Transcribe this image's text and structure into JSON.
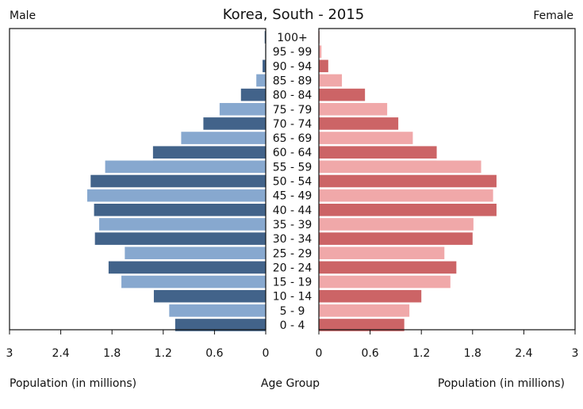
{
  "chart_data": {
    "type": "bar",
    "subtype": "population-pyramid",
    "title": "Korea, South - 2015",
    "left_label": "Male",
    "right_label": "Female",
    "xlabel_left": "Population (in millions)",
    "xlabel_center": "Age Group",
    "xlabel_right": "Population (in millions)",
    "xlim": [
      0,
      3
    ],
    "xticks": [
      "0",
      "0.6",
      "1.2",
      "1.8",
      "2.4",
      "3"
    ],
    "grid": false,
    "categories": [
      "0 - 4",
      "5 - 9",
      "10 - 14",
      "15 - 19",
      "20 - 24",
      "25 - 29",
      "30 - 34",
      "35 - 39",
      "40 - 44",
      "45 - 49",
      "50 - 54",
      "55 - 59",
      "60 - 64",
      "65 - 69",
      "70 - 74",
      "75 - 79",
      "80 - 84",
      "85 - 89",
      "90 - 94",
      "95 - 99",
      "100+"
    ],
    "series": [
      {
        "name": "Male",
        "values": [
          1.06,
          1.13,
          1.31,
          1.69,
          1.84,
          1.65,
          2.0,
          1.95,
          2.01,
          2.09,
          2.05,
          1.88,
          1.32,
          0.99,
          0.73,
          0.54,
          0.29,
          0.11,
          0.037,
          0.006,
          0.012
        ],
        "colors": [
          "#42638a",
          "#87a8cf"
        ]
      },
      {
        "name": "Female",
        "values": [
          1.0,
          1.06,
          1.2,
          1.54,
          1.61,
          1.47,
          1.8,
          1.81,
          2.08,
          2.04,
          2.08,
          1.9,
          1.38,
          1.1,
          0.93,
          0.8,
          0.54,
          0.27,
          0.11,
          0.03,
          0.007
        ],
        "colors": [
          "#cc6466",
          "#f0a8a9"
        ]
      }
    ]
  }
}
